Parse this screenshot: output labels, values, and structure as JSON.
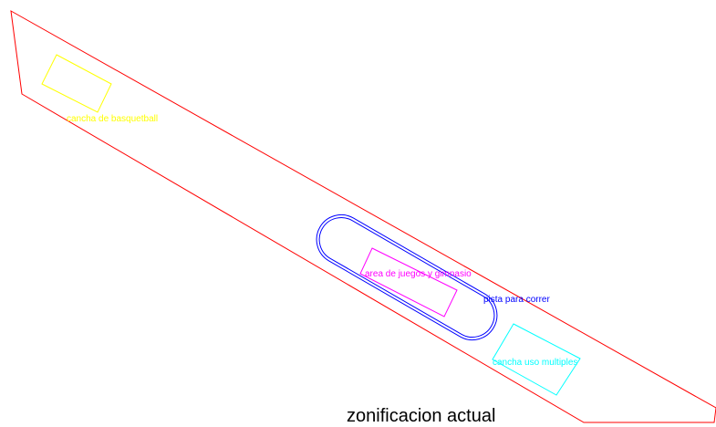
{
  "title": "zonificacion actual",
  "zones": [
    {
      "label": "cancha de basquetball"
    },
    {
      "label": "area de juegos y gimnasio"
    },
    {
      "label": "pista para correr"
    },
    {
      "label": "cancha uso multiples"
    }
  ]
}
